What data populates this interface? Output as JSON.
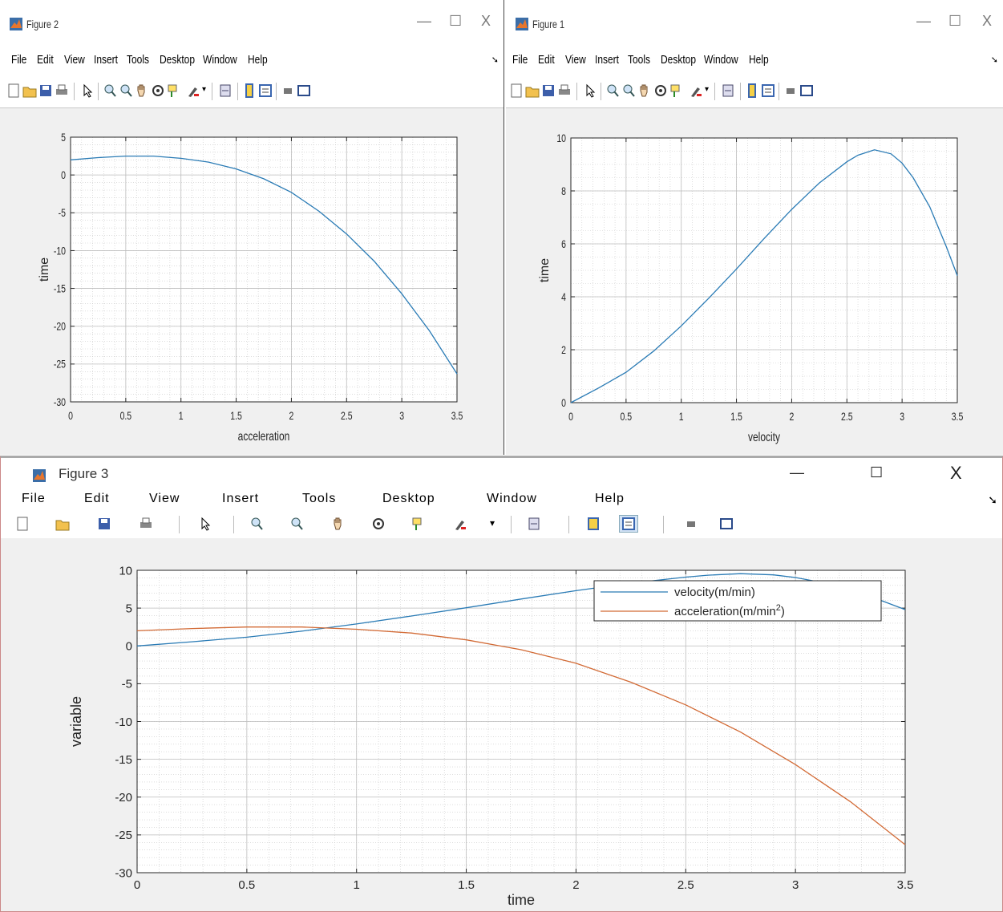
{
  "menu": [
    "File",
    "Edit",
    "View",
    "Insert",
    "Tools",
    "Desktop",
    "Window",
    "Help"
  ],
  "window_controls": {
    "minimize": "—",
    "maximize": "☐",
    "close": "X"
  },
  "colors": {
    "velocity": "#2a7bb5",
    "acceleration": "#d26a35",
    "grid": "#c8c8c8"
  },
  "figures": [
    {
      "window_title": "Figure 2"
    },
    {
      "window_title": "Figure 1"
    },
    {
      "window_title": "Figure 3"
    }
  ],
  "chart_data": [
    {
      "type": "line",
      "xlabel": "acceleration",
      "ylabel": "time",
      "xlim": [
        0,
        3.5
      ],
      "ylim": [
        -30,
        5
      ],
      "xticks": [
        "0",
        "0.5",
        "1",
        "1.5",
        "2",
        "2.5",
        "3",
        "3.5"
      ],
      "yticks": [
        "5",
        "0",
        "-5",
        "-10",
        "-15",
        "-20",
        "-25",
        "-30"
      ],
      "grid": true,
      "series": [
        {
          "x": [
            0,
            0.25,
            0.5,
            0.75,
            1,
            1.25,
            1.5,
            1.75,
            2,
            2.25,
            2.5,
            2.75,
            3,
            3.25,
            3.5
          ],
          "y": [
            2,
            2.3,
            2.5,
            2.5,
            2.2,
            1.7,
            0.8,
            -0.5,
            -2.3,
            -4.8,
            -7.8,
            -11.4,
            -15.7,
            -20.6,
            -26.3
          ]
        }
      ]
    },
    {
      "type": "line",
      "xlabel": "velocity",
      "ylabel": "time",
      "xlim": [
        0,
        3.5
      ],
      "ylim": [
        0,
        10
      ],
      "xticks": [
        "0",
        "0.5",
        "1",
        "1.5",
        "2",
        "2.5",
        "3",
        "3.5"
      ],
      "yticks": [
        "10",
        "8",
        "6",
        "4",
        "2",
        "0"
      ],
      "grid": true,
      "series": [
        {
          "x": [
            0,
            0.25,
            0.5,
            0.75,
            1,
            1.25,
            1.5,
            1.75,
            2,
            2.25,
            2.5,
            2.6,
            2.75,
            2.9,
            3,
            3.1,
            3.25,
            3.4,
            3.5
          ],
          "y": [
            0,
            0.55,
            1.15,
            1.95,
            2.9,
            3.95,
            5.05,
            6.2,
            7.3,
            8.3,
            9.1,
            9.35,
            9.55,
            9.4,
            9.05,
            8.5,
            7.4,
            5.9,
            4.8
          ]
        }
      ]
    },
    {
      "type": "line",
      "xlabel": "time",
      "ylabel": "variable",
      "xlim": [
        0,
        3.5
      ],
      "ylim": [
        -30,
        10
      ],
      "xticks": [
        "0",
        "0.5",
        "1",
        "1.5",
        "2",
        "2.5",
        "3",
        "3.5"
      ],
      "yticks": [
        "10",
        "5",
        "0",
        "-5",
        "-10",
        "-15",
        "-20",
        "-25",
        "-30"
      ],
      "grid": true,
      "legend_position": "top-right",
      "series": [
        {
          "name": "velocity(m/min)",
          "x": [
            0,
            0.25,
            0.5,
            0.75,
            1,
            1.25,
            1.5,
            1.75,
            2,
            2.25,
            2.5,
            2.6,
            2.75,
            2.9,
            3,
            3.1,
            3.25,
            3.4,
            3.5
          ],
          "y": [
            0,
            0.55,
            1.15,
            1.95,
            2.9,
            3.95,
            5.05,
            6.2,
            7.3,
            8.3,
            9.1,
            9.35,
            9.55,
            9.4,
            9.05,
            8.5,
            7.4,
            5.9,
            4.8
          ]
        },
        {
          "name": "acceleration(m/min",
          "name_sup": "2",
          "name_suffix": ")",
          "x": [
            0,
            0.25,
            0.5,
            0.75,
            1,
            1.25,
            1.5,
            1.75,
            2,
            2.25,
            2.5,
            2.75,
            3,
            3.25,
            3.5
          ],
          "y": [
            2,
            2.3,
            2.5,
            2.5,
            2.2,
            1.7,
            0.8,
            -0.5,
            -2.3,
            -4.8,
            -7.8,
            -11.4,
            -15.7,
            -20.6,
            -26.3
          ]
        }
      ]
    }
  ]
}
